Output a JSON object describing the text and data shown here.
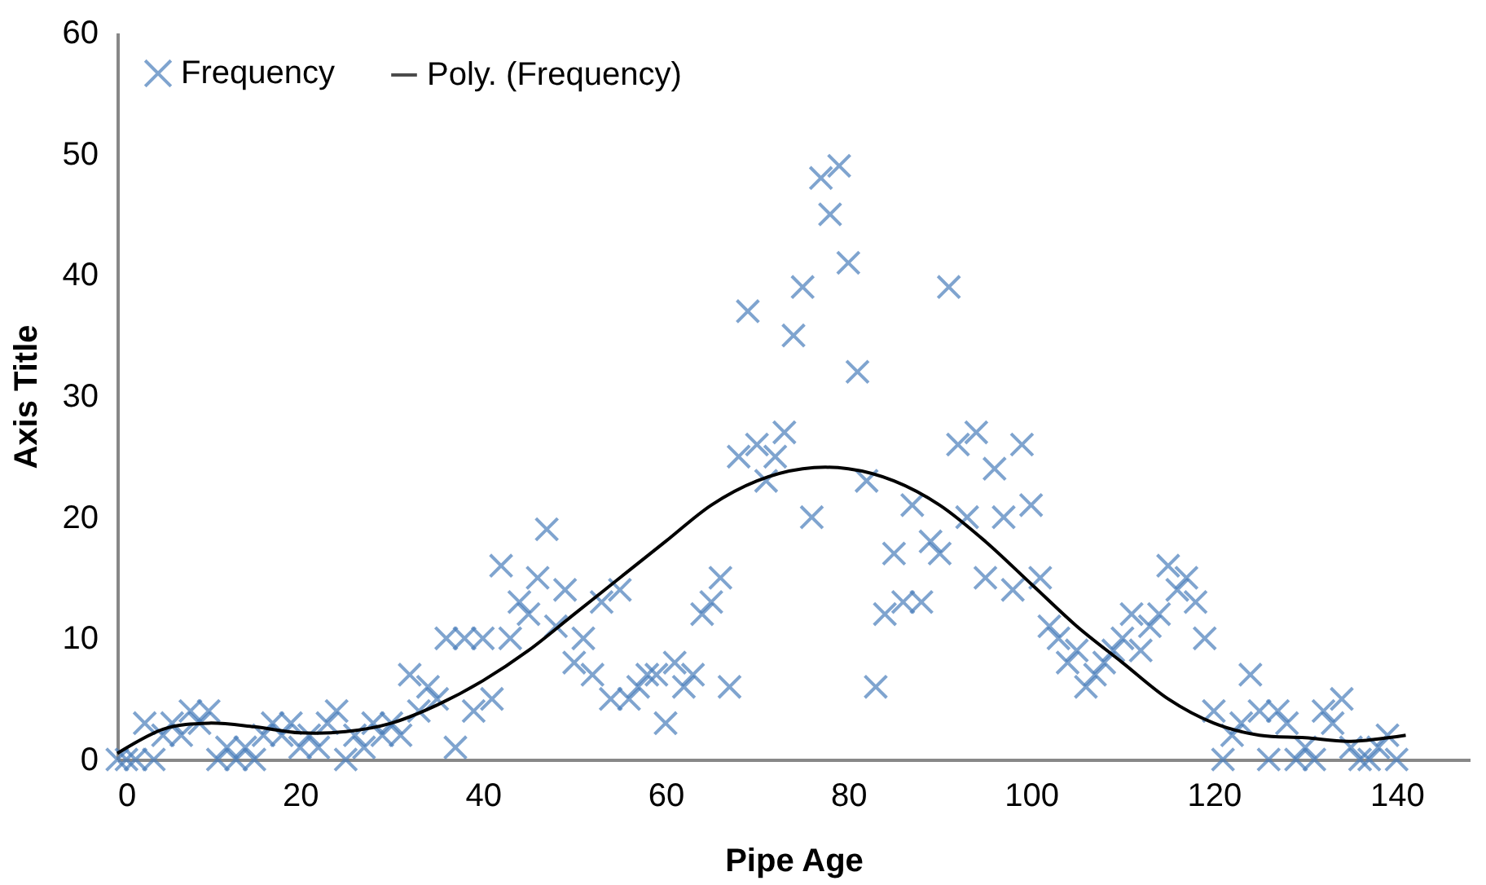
{
  "chart_data": {
    "type": "scatter",
    "xlabel": "Pipe Age",
    "ylabel": "Axis Title",
    "xlim": [
      0,
      148
    ],
    "xticks": [
      0,
      20,
      40,
      60,
      80,
      100,
      120,
      140
    ],
    "ylim": [
      0,
      60
    ],
    "yticks": [
      0,
      10,
      20,
      30,
      40,
      50,
      60
    ],
    "grid": false,
    "legend": "top left",
    "series": [
      {
        "name": "Frequency",
        "color": "#4a7ebb",
        "marker": "cross",
        "x": [
          0,
          1,
          2,
          3,
          4,
          5,
          6,
          7,
          8,
          9,
          10,
          11,
          12,
          13,
          14,
          15,
          16,
          17,
          18,
          19,
          20,
          21,
          22,
          23,
          24,
          25,
          26,
          27,
          28,
          29,
          30,
          31,
          32,
          33,
          34,
          35,
          36,
          37,
          38,
          39,
          40,
          41,
          42,
          43,
          44,
          45,
          46,
          47,
          48,
          49,
          50,
          51,
          52,
          53,
          54,
          55,
          56,
          57,
          58,
          59,
          60,
          61,
          62,
          63,
          64,
          65,
          66,
          67,
          68,
          69,
          70,
          71,
          72,
          73,
          74,
          75,
          76,
          77,
          78,
          79,
          80,
          81,
          82,
          83,
          84,
          85,
          86,
          87,
          88,
          89,
          90,
          91,
          92,
          93,
          94,
          95,
          96,
          97,
          98,
          99,
          100,
          101,
          102,
          103,
          104,
          105,
          106,
          107,
          108,
          109,
          110,
          111,
          112,
          113,
          114,
          115,
          116,
          117,
          118,
          119,
          120,
          121,
          122,
          123,
          124,
          125,
          126,
          127,
          128,
          129,
          130,
          131,
          132,
          133,
          134,
          135,
          136,
          137,
          138,
          139,
          140
        ],
        "values": [
          0,
          0,
          0,
          3,
          0,
          2,
          3,
          2,
          4,
          3,
          4,
          0,
          1,
          0,
          1,
          0,
          2,
          3,
          2,
          3,
          1,
          2,
          1,
          3,
          4,
          0,
          2,
          1,
          3,
          2,
          3,
          2,
          7,
          4,
          6,
          5,
          10,
          1,
          10,
          4,
          10,
          5,
          16,
          10,
          13,
          12,
          15,
          19,
          11,
          14,
          8,
          10,
          7,
          13,
          5,
          14,
          5,
          6,
          7,
          7,
          3,
          8,
          6,
          7,
          12,
          13,
          15,
          6,
          25,
          37,
          26,
          23,
          25,
          27,
          35,
          39,
          20,
          48,
          45,
          49,
          41,
          32,
          23,
          6,
          12,
          17,
          13,
          21,
          13,
          18,
          17,
          39,
          26,
          20,
          27,
          15,
          24,
          20,
          14,
          26,
          21,
          15,
          11,
          10,
          8,
          9,
          6,
          7,
          8,
          9,
          10,
          12,
          9,
          11,
          12,
          16,
          14,
          15,
          13,
          10,
          4,
          0,
          2,
          3,
          7,
          4,
          0,
          4,
          3,
          0,
          1,
          0,
          4,
          3,
          5,
          1,
          0,
          0,
          1,
          2,
          0
        ]
      },
      {
        "name": "Poly. (Frequency)",
        "type": "line",
        "color": "#000000",
        "line_style": "solid",
        "marker": "none",
        "x": [
          0,
          5,
          10,
          15,
          20,
          25,
          30,
          35,
          40,
          45,
          50,
          55,
          60,
          65,
          70,
          75,
          80,
          85,
          90,
          95,
          100,
          105,
          110,
          115,
          120,
          125,
          130,
          135,
          141
        ],
        "values": [
          0.5,
          2.5,
          3,
          2.7,
          2.2,
          2.3,
          3,
          4.5,
          6.5,
          9,
          12,
          15,
          18,
          21,
          23,
          24,
          24,
          23,
          21,
          18,
          14.5,
          11,
          8,
          5,
          3,
          2,
          1.8,
          1.5,
          2
        ]
      }
    ]
  }
}
